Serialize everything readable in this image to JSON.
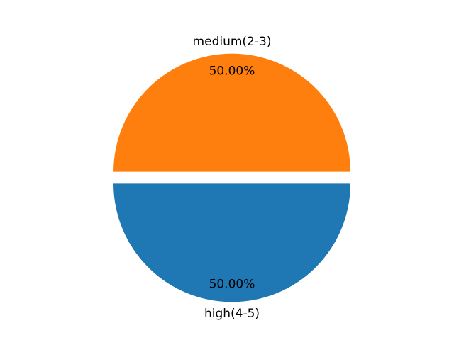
{
  "chart_data": {
    "type": "pie",
    "slices": [
      {
        "label": "medium(2-3)",
        "value": 50.0,
        "pct_text": "50.00%",
        "color": "#ff7f0e",
        "explode": 0.05
      },
      {
        "label": "high(4-5)",
        "value": 50.0,
        "pct_text": "50.00%",
        "color": "#1f77b4",
        "explode": 0.05
      }
    ],
    "start_angle": 0,
    "counterclockwise": true,
    "title": "",
    "legend": "none"
  }
}
